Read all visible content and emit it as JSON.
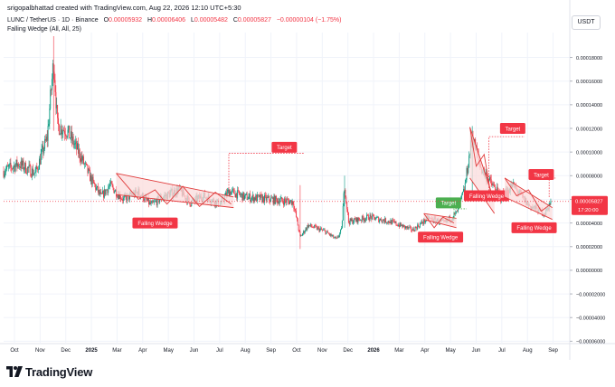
{
  "header": {
    "credit": "srigopalbhattad created with TradingView.com, Aug 22, 2026 12:10 UTC+5:30",
    "symbol": "LUNC / TetherUS · 1D · Binance",
    "ohlc": [
      {
        "key": "O",
        "value": "0.00005932"
      },
      {
        "key": "H",
        "value": "0.00006406"
      },
      {
        "key": "L",
        "value": "0.00005482"
      },
      {
        "key": "C",
        "value": "0.00005827"
      }
    ],
    "change": "−0.00000104 (−1.75%)",
    "indicator": "Falling Wedge (All, All, 25)",
    "currency": "USDT"
  },
  "footer": {
    "brand": "TradingView"
  },
  "colors": {
    "up": "#089981",
    "down": "#f23645",
    "pattern": "#e03b3b",
    "pattern_fill": "#fbdcdc",
    "grid": "#f0f3fa",
    "axis_text": "#131722",
    "target_green": "#4caf50"
  },
  "chart_data": {
    "type": "candlestick",
    "title": "LUNC / TetherUS · 1D · Binance",
    "y_axis": {
      "ticks": [
        "0.00018000",
        "0.00016000",
        "0.00014000",
        "0.00012000",
        "0.00010000",
        "0.00008000",
        "0.00006000",
        "0.00004000",
        "0.00002000",
        "0.00000000",
        "−0.00002000",
        "−0.00004000",
        "−0.00006000"
      ],
      "tick_values": [
        0.00018,
        0.00016,
        0.00014,
        0.00012,
        0.0001,
        8e-05,
        6e-05,
        4e-05,
        2e-05,
        0,
        -2e-05,
        -4e-05,
        -6e-05
      ],
      "ylim": [
        -6.2e-05,
        0.000198
      ],
      "position": "right"
    },
    "x_axis": {
      "labels": [
        "Oct",
        "Nov",
        "Dec",
        "2025",
        "Mar",
        "Apr",
        "May",
        "Jun",
        "Jul",
        "Aug",
        "Sep",
        "Oct",
        "Nov",
        "Dec",
        "2026",
        "Mar",
        "Apr",
        "May",
        "Jun",
        "Jul",
        "Aug",
        "Sep"
      ],
      "start": "2024-10-01",
      "end": "2026-09-15"
    },
    "last_price": {
      "value": 5.827e-05,
      "label": "0.00005827",
      "countdown": "17:20:00"
    },
    "close_path": [
      [
        "2024-10-01",
        8.4e-05
      ],
      [
        "2024-10-20",
        9e-05
      ],
      [
        "2024-11-10",
        8.2e-05
      ],
      [
        "2024-11-25",
        0.000112
      ],
      [
        "2024-12-03",
        0.000178
      ],
      [
        "2024-12-08",
        0.000122
      ],
      [
        "2024-12-20",
        0.000118
      ],
      [
        "2025-01-05",
        9.8e-05
      ],
      [
        "2025-01-20",
        7.6e-05
      ],
      [
        "2025-02-01",
        6.2e-05
      ],
      [
        "2025-02-12",
        7.2e-05
      ],
      [
        "2025-03-01",
        6e-05
      ],
      [
        "2025-03-20",
        6.6e-05
      ],
      [
        "2025-04-05",
        5.5e-05
      ],
      [
        "2025-04-20",
        6.2e-05
      ],
      [
        "2025-05-10",
        6.8e-05
      ],
      [
        "2025-05-25",
        5.7e-05
      ],
      [
        "2025-06-10",
        6.3e-05
      ],
      [
        "2025-07-01",
        5.6e-05
      ],
      [
        "2025-07-12",
        6.7e-05
      ],
      [
        "2025-08-01",
        6.2e-05
      ],
      [
        "2025-09-01",
        6e-05
      ],
      [
        "2025-10-01",
        5.8e-05
      ],
      [
        "2025-10-05",
        4.5e-05
      ],
      [
        "2025-10-10",
        2.8e-05
      ],
      [
        "2025-10-20",
        3.8e-05
      ],
      [
        "2025-11-10",
        3.3e-05
      ],
      [
        "2025-11-25",
        2.6e-05
      ],
      [
        "2025-12-01",
        3.4e-05
      ],
      [
        "2025-12-05",
        7.2e-05
      ],
      [
        "2025-12-10",
        4.1e-05
      ],
      [
        "2026-01-05",
        4.5e-05
      ],
      [
        "2026-02-01",
        4.1e-05
      ],
      [
        "2026-03-01",
        3.4e-05
      ],
      [
        "2026-03-20",
        4.4e-05
      ],
      [
        "2026-04-10",
        4e-05
      ],
      [
        "2026-04-25",
        4.8e-05
      ],
      [
        "2026-05-05",
        6.8e-05
      ],
      [
        "2026-05-15",
        0.000114
      ],
      [
        "2026-05-25",
        8.8e-05
      ],
      [
        "2026-06-05",
        7.6e-05
      ],
      [
        "2026-06-20",
        6.2e-05
      ],
      [
        "2026-07-05",
        7.2e-05
      ],
      [
        "2026-07-25",
        5.5e-05
      ],
      [
        "2026-08-15",
        4.8e-05
      ],
      [
        "2026-08-22",
        5.827e-05
      ]
    ],
    "spikes": [
      [
        "2024-12-03",
        0.000198,
        0.000118
      ],
      [
        "2025-10-10",
        7.2e-05,
        1.8e-05
      ],
      [
        "2025-12-05",
        8e-05,
        3.6e-05
      ],
      [
        "2026-05-15",
        0.000122,
        6e-05
      ]
    ],
    "annotations": [
      {
        "name": "Falling Wedge",
        "type": "falling_wedge",
        "label": "Falling Wedge",
        "upper": [
          [
            "2025-02-20",
            8.2e-05
          ],
          [
            "2025-07-18",
            6.2e-05
          ]
        ],
        "lower": [
          [
            "2025-02-20",
            6.4e-05
          ],
          [
            "2025-07-18",
            5.3e-05
          ]
        ],
        "zigzag": [
          [
            "2025-02-20",
            8.2e-05
          ],
          [
            "2025-03-20",
            6e-05
          ],
          [
            "2025-04-10",
            6.8e-05
          ],
          [
            "2025-04-25",
            5.6e-05
          ],
          [
            "2025-05-15",
            7.1e-05
          ],
          [
            "2025-06-05",
            5.4e-05
          ],
          [
            "2025-06-25",
            6.6e-05
          ],
          [
            "2025-07-15",
            5.6e-05
          ]
        ],
        "label_at": [
          "2025-04-10",
          4e-05
        ]
      },
      {
        "name": "Falling Wedge",
        "type": "falling_wedge",
        "label": "Falling Wedge",
        "upper": [
          [
            "2026-03-15",
            4.8e-05
          ],
          [
            "2026-04-25",
            4.4e-05
          ]
        ],
        "lower": [
          [
            "2026-03-15",
            4.3e-05
          ],
          [
            "2026-04-25",
            3.6e-05
          ]
        ],
        "zigzag": [
          [
            "2026-03-15",
            4.8e-05
          ],
          [
            "2026-03-28",
            3.6e-05
          ],
          [
            "2026-04-08",
            4.5e-05
          ],
          [
            "2026-04-22",
            4e-05
          ]
        ],
        "label_at": [
          "2026-04-05",
          2.8e-05
        ]
      },
      {
        "name": "Falling Wedge",
        "type": "falling_wedge",
        "label": "Falling Wedge",
        "upper": [
          [
            "2026-05-12",
            0.000121
          ],
          [
            "2026-06-12",
            5.8e-05
          ]
        ],
        "lower": [
          [
            "2026-05-12",
            7.8e-05
          ],
          [
            "2026-06-12",
            4.8e-05
          ]
        ],
        "zigzag": [
          [
            "2026-05-12",
            0.000121
          ],
          [
            "2026-05-20",
            8.8e-05
          ],
          [
            "2026-05-30",
            9.8e-05
          ],
          [
            "2026-06-08",
            6.2e-05
          ]
        ],
        "label_at": [
          "2026-06-02",
          6.3e-05
        ]
      },
      {
        "name": "Falling Wedge",
        "type": "falling_wedge",
        "label": "Falling Wedge",
        "upper": [
          [
            "2026-06-25",
            7.8e-05
          ],
          [
            "2026-08-24",
            5.3e-05
          ]
        ],
        "lower": [
          [
            "2026-06-25",
            6.2e-05
          ],
          [
            "2026-08-24",
            4.3e-05
          ]
        ],
        "zigzag": [
          [
            "2026-06-25",
            7.8e-05
          ],
          [
            "2026-07-10",
            6.3e-05
          ],
          [
            "2026-07-25",
            6.8e-05
          ],
          [
            "2026-08-10",
            5e-05
          ],
          [
            "2026-08-22",
            5.6e-05
          ]
        ],
        "label_at": [
          "2026-08-01",
          3.6e-05
        ]
      }
    ],
    "targets": [
      {
        "label": "Target",
        "color": "red",
        "from": [
          "2025-07-12",
          6.7e-05
        ],
        "to": [
          "2025-10-15",
          9.9e-05
        ],
        "label_at": [
          "2025-09-20",
          0.000104
        ]
      },
      {
        "label": "Target",
        "color": "green",
        "from": [
          "2026-04-22",
          4.4e-05
        ],
        "to": [
          "2026-05-08",
          5.2e-05
        ],
        "label_at": [
          "2026-04-15",
          5.7e-05
        ]
      },
      {
        "label": "Target",
        "color": "red",
        "from": [
          "2026-06-05",
          6.5e-05
        ],
        "to": [
          "2026-07-20",
          0.000113
        ],
        "label_at": [
          "2026-07-05",
          0.00012
        ]
      },
      {
        "label": "Target",
        "color": "red",
        "from": [
          "2026-08-20",
          6.2e-05
        ],
        "to": [
          "2026-08-28",
          7.8e-05
        ],
        "label_at": [
          "2026-08-10",
          8.1e-05
        ]
      }
    ]
  }
}
